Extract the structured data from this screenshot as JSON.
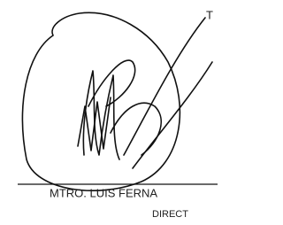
{
  "header_fragment": "T",
  "signer": {
    "name": "MTRO. LUIS FERNA",
    "title": "DIRECT"
  }
}
